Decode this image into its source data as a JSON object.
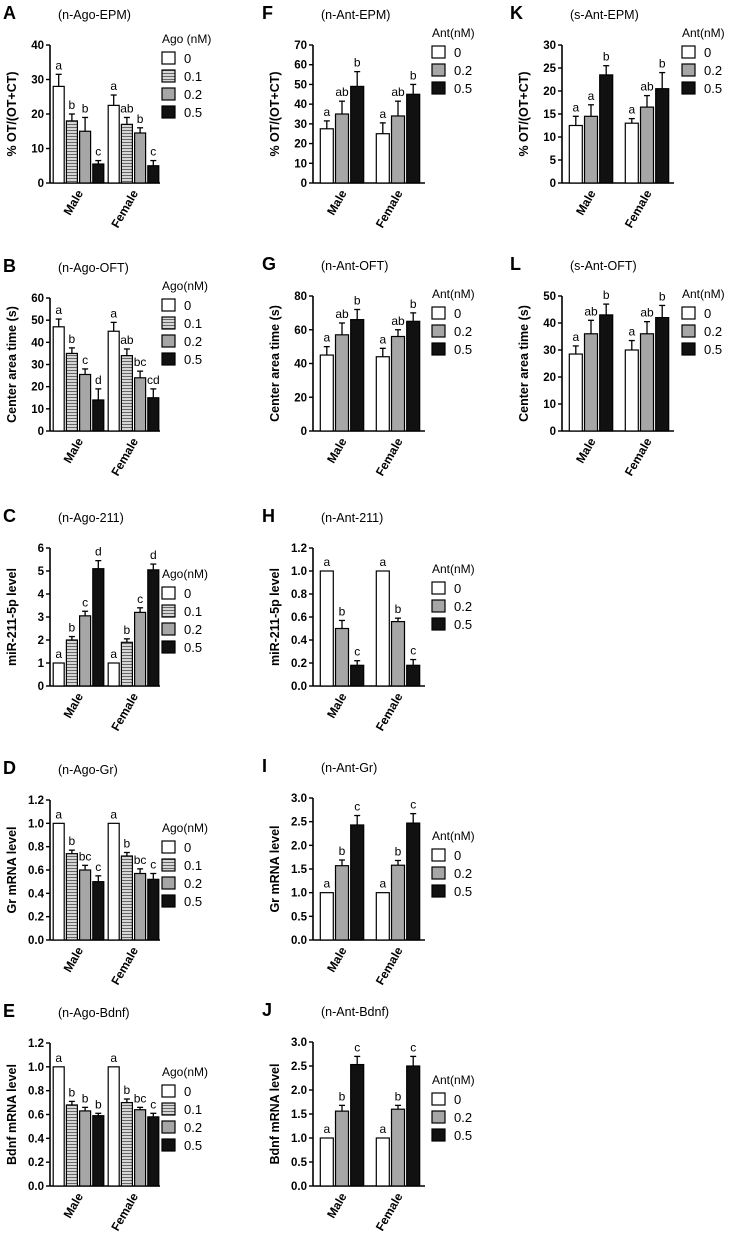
{
  "colors": {
    "axis": "#000000",
    "bar0": "#ffffff",
    "bar_white": "#ffffff",
    "bar_hatch": "#d6d6d6",
    "bar_gray": "#a6a6a6",
    "bar_black": "#111111"
  },
  "chart_data": [
    {
      "id": "A",
      "letter": "A",
      "type": "bar",
      "title": "(n-Ago-EPM)",
      "ylabel": "% OT/(OT+CT)",
      "ylim": [
        0,
        40
      ],
      "yticks": [
        "0",
        "10",
        "20",
        "30",
        "40"
      ],
      "categories": [
        "Male",
        "Female"
      ],
      "legend_title": "Ago (nM)",
      "series": [
        {
          "name": "0",
          "fill": "white",
          "values": [
            28,
            22.5
          ],
          "errors": [
            3.5,
            3
          ],
          "labels": [
            "a",
            "a"
          ]
        },
        {
          "name": "0.1",
          "fill": "hatch",
          "values": [
            18,
            17
          ],
          "errors": [
            2,
            2
          ],
          "labels": [
            "b",
            "ab"
          ]
        },
        {
          "name": "0.2",
          "fill": "gray",
          "values": [
            15,
            14.5
          ],
          "errors": [
            4,
            1.5
          ],
          "labels": [
            "b",
            "b"
          ]
        },
        {
          "name": "0.5",
          "fill": "black",
          "values": [
            5.5,
            5
          ],
          "errors": [
            1,
            1.5
          ],
          "labels": [
            "c",
            "c"
          ]
        }
      ]
    },
    {
      "id": "B",
      "letter": "B",
      "type": "bar",
      "title": "(n-Ago-OFT)",
      "ylabel": "Center area time (s)",
      "ylim": [
        0,
        60
      ],
      "yticks": [
        "0",
        "10",
        "20",
        "30",
        "40",
        "50",
        "60"
      ],
      "categories": [
        "Male",
        "Female"
      ],
      "legend_title": "Ago(nM)",
      "series": [
        {
          "name": "0",
          "fill": "white",
          "values": [
            47,
            45
          ],
          "errors": [
            3.5,
            4
          ],
          "labels": [
            "a",
            "a"
          ]
        },
        {
          "name": "0.1",
          "fill": "hatch",
          "values": [
            35,
            34
          ],
          "errors": [
            2.5,
            3
          ],
          "labels": [
            "b",
            "ab"
          ]
        },
        {
          "name": "0.2",
          "fill": "gray",
          "values": [
            25.5,
            24
          ],
          "errors": [
            2.5,
            3
          ],
          "labels": [
            "c",
            "bc"
          ]
        },
        {
          "name": "0.5",
          "fill": "black",
          "values": [
            14,
            15
          ],
          "errors": [
            5,
            4
          ],
          "labels": [
            "d",
            "cd"
          ]
        }
      ]
    },
    {
      "id": "C",
      "letter": "C",
      "type": "bar",
      "title": "(n-Ago-211)",
      "ylabel": "miR-211-5p level",
      "ylim": [
        0,
        6
      ],
      "yticks": [
        "0",
        "1",
        "2",
        "3",
        "4",
        "5",
        "6"
      ],
      "categories": [
        "Male",
        "Female"
      ],
      "legend_title": "Ago(nM)",
      "series": [
        {
          "name": "0",
          "fill": "white",
          "values": [
            1,
            1
          ],
          "errors": [
            0,
            0
          ],
          "labels": [
            "a",
            "a"
          ]
        },
        {
          "name": "0.1",
          "fill": "hatch",
          "values": [
            2,
            1.9
          ],
          "errors": [
            0.15,
            0.15
          ],
          "labels": [
            "b",
            "b"
          ]
        },
        {
          "name": "0.2",
          "fill": "gray",
          "values": [
            3.05,
            3.2
          ],
          "errors": [
            0.2,
            0.2
          ],
          "labels": [
            "c",
            "c"
          ]
        },
        {
          "name": "0.5",
          "fill": "black",
          "values": [
            5.1,
            5.05
          ],
          "errors": [
            0.35,
            0.25
          ],
          "labels": [
            "d",
            "d"
          ]
        }
      ]
    },
    {
      "id": "D",
      "letter": "D",
      "type": "bar",
      "title": "(n-Ago-Gr)",
      "ylabel": "Gr mRNA level",
      "ylim": [
        0,
        1.2
      ],
      "yticks": [
        "0.0",
        "0.2",
        "0.4",
        "0.6",
        "0.8",
        "1.0",
        "1.2"
      ],
      "categories": [
        "Male",
        "Female"
      ],
      "legend_title": "Ago(nM)",
      "series": [
        {
          "name": "0",
          "fill": "white",
          "values": [
            1.0,
            1.0
          ],
          "errors": [
            0,
            0
          ],
          "labels": [
            "a",
            "a"
          ]
        },
        {
          "name": "0.1",
          "fill": "hatch",
          "values": [
            0.74,
            0.72
          ],
          "errors": [
            0.03,
            0.03
          ],
          "labels": [
            "b",
            "b"
          ]
        },
        {
          "name": "0.2",
          "fill": "gray",
          "values": [
            0.6,
            0.57
          ],
          "errors": [
            0.04,
            0.04
          ],
          "labels": [
            "bc",
            "bc"
          ]
        },
        {
          "name": "0.5",
          "fill": "black",
          "values": [
            0.5,
            0.52
          ],
          "errors": [
            0.05,
            0.05
          ],
          "labels": [
            "c",
            "c"
          ]
        }
      ]
    },
    {
      "id": "E",
      "letter": "E",
      "type": "bar",
      "title": "(n-Ago-Bdnf)",
      "ylabel": "Bdnf mRNA level",
      "ylim": [
        0,
        1.2
      ],
      "yticks": [
        "0.0",
        "0.2",
        "0.4",
        "0.6",
        "0.8",
        "1.0",
        "1.2"
      ],
      "categories": [
        "Male",
        "Female"
      ],
      "legend_title": "Ago(nM)",
      "series": [
        {
          "name": "0",
          "fill": "white",
          "values": [
            1.0,
            1.0
          ],
          "errors": [
            0,
            0
          ],
          "labels": [
            "a",
            "a"
          ]
        },
        {
          "name": "0.1",
          "fill": "hatch",
          "values": [
            0.68,
            0.7
          ],
          "errors": [
            0.03,
            0.03
          ],
          "labels": [
            "b",
            "b"
          ]
        },
        {
          "name": "0.2",
          "fill": "gray",
          "values": [
            0.63,
            0.64
          ],
          "errors": [
            0.03,
            0.02
          ],
          "labels": [
            "b",
            "bc"
          ]
        },
        {
          "name": "0.5",
          "fill": "black",
          "values": [
            0.59,
            0.58
          ],
          "errors": [
            0.02,
            0.03
          ],
          "labels": [
            "b",
            "c"
          ]
        }
      ]
    },
    {
      "id": "F",
      "letter": "F",
      "type": "bar",
      "title": "(n-Ant-EPM)",
      "ylabel": "% OT/(OT+CT)",
      "ylim": [
        0,
        70
      ],
      "yticks": [
        "0",
        "10",
        "20",
        "30",
        "40",
        "50",
        "60",
        "70"
      ],
      "categories": [
        "Male",
        "Female"
      ],
      "legend_title": "Ant(nM)",
      "series": [
        {
          "name": "0",
          "fill": "white",
          "values": [
            27.5,
            25
          ],
          "errors": [
            4,
            5.5
          ],
          "labels": [
            "a",
            "a"
          ]
        },
        {
          "name": "0.2",
          "fill": "gray",
          "values": [
            35,
            34
          ],
          "errors": [
            6.5,
            7.5
          ],
          "labels": [
            "ab",
            "ab"
          ]
        },
        {
          "name": "0.5",
          "fill": "black",
          "values": [
            49,
            45
          ],
          "errors": [
            7.5,
            5
          ],
          "labels": [
            "b",
            "b"
          ]
        }
      ]
    },
    {
      "id": "G",
      "letter": "G",
      "type": "bar",
      "title": "(n-Ant-OFT)",
      "ylabel": "Center area time (s)",
      "ylim": [
        0,
        80
      ],
      "yticks": [
        "0",
        "20",
        "40",
        "60",
        "80"
      ],
      "categories": [
        "Male",
        "Female"
      ],
      "legend_title": "Ant(nM)",
      "series": [
        {
          "name": "0",
          "fill": "white",
          "values": [
            45,
            44
          ],
          "errors": [
            5,
            5
          ],
          "labels": [
            "a",
            "a"
          ]
        },
        {
          "name": "0.2",
          "fill": "gray",
          "values": [
            57,
            56
          ],
          "errors": [
            7,
            4
          ],
          "labels": [
            "ab",
            "ab"
          ]
        },
        {
          "name": "0.5",
          "fill": "black",
          "values": [
            66,
            65
          ],
          "errors": [
            6,
            5
          ],
          "labels": [
            "b",
            "b"
          ]
        }
      ]
    },
    {
      "id": "H",
      "letter": "H",
      "type": "bar",
      "title": "(n-Ant-211)",
      "ylabel": "miR-211-5p level",
      "ylim": [
        0,
        1.2
      ],
      "yticks": [
        "0.0",
        "0.2",
        "0.4",
        "0.6",
        "0.8",
        "1.0",
        "1.2"
      ],
      "categories": [
        "Male",
        "Female"
      ],
      "legend_title": "Ant(nM)",
      "series": [
        {
          "name": "0",
          "fill": "white",
          "values": [
            1.0,
            1.0
          ],
          "errors": [
            0,
            0
          ],
          "labels": [
            "a",
            "a"
          ]
        },
        {
          "name": "0.2",
          "fill": "gray",
          "values": [
            0.5,
            0.56
          ],
          "errors": [
            0.07,
            0.03
          ],
          "labels": [
            "b",
            "b"
          ]
        },
        {
          "name": "0.5",
          "fill": "black",
          "values": [
            0.18,
            0.18
          ],
          "errors": [
            0.04,
            0.05
          ],
          "labels": [
            "c",
            "c"
          ]
        }
      ]
    },
    {
      "id": "I",
      "letter": "I",
      "type": "bar",
      "title": "(n-Ant-Gr)",
      "ylabel": "Gr mRNA level",
      "ylim": [
        0,
        3.0
      ],
      "yticks": [
        "0.0",
        "0.5",
        "1.0",
        "1.5",
        "2.0",
        "2.5",
        "3.0"
      ],
      "categories": [
        "Male",
        "Female"
      ],
      "legend_title": "Ant(nM)",
      "series": [
        {
          "name": "0",
          "fill": "white",
          "values": [
            1.0,
            1.0
          ],
          "errors": [
            0,
            0
          ],
          "labels": [
            "a",
            "a"
          ]
        },
        {
          "name": "0.2",
          "fill": "gray",
          "values": [
            1.57,
            1.58
          ],
          "errors": [
            0.12,
            0.1
          ],
          "labels": [
            "b",
            "b"
          ]
        },
        {
          "name": "0.5",
          "fill": "black",
          "values": [
            2.43,
            2.47
          ],
          "errors": [
            0.2,
            0.2
          ],
          "labels": [
            "c",
            "c"
          ]
        }
      ]
    },
    {
      "id": "J",
      "letter": "J",
      "type": "bar",
      "title": "(n-Ant-Bdnf)",
      "ylabel": "Bdnf mRNA level",
      "ylim": [
        0,
        3.0
      ],
      "yticks": [
        "0.0",
        "0.5",
        "1.0",
        "1.5",
        "2.0",
        "2.5",
        "3.0"
      ],
      "categories": [
        "Male",
        "Female"
      ],
      "legend_title": "Ant(nM)",
      "series": [
        {
          "name": "0",
          "fill": "white",
          "values": [
            1.0,
            1.0
          ],
          "errors": [
            0,
            0
          ],
          "labels": [
            "a",
            "a"
          ]
        },
        {
          "name": "0.2",
          "fill": "gray",
          "values": [
            1.56,
            1.6
          ],
          "errors": [
            0.12,
            0.08
          ],
          "labels": [
            "b",
            "b"
          ]
        },
        {
          "name": "0.5",
          "fill": "black",
          "values": [
            2.53,
            2.5
          ],
          "errors": [
            0.17,
            0.2
          ],
          "labels": [
            "c",
            "c"
          ]
        }
      ]
    },
    {
      "id": "K",
      "letter": "K",
      "type": "bar",
      "title": "(s-Ant-EPM)",
      "ylabel": "% OT/(OT+CT)",
      "ylim": [
        0,
        30
      ],
      "yticks": [
        "0",
        "5",
        "10",
        "15",
        "20",
        "25",
        "30"
      ],
      "categories": [
        "Male",
        "Female"
      ],
      "legend_title": "Ant(nM)",
      "series": [
        {
          "name": "0",
          "fill": "white",
          "values": [
            12.5,
            13
          ],
          "errors": [
            2,
            1
          ],
          "labels": [
            "a",
            "a"
          ]
        },
        {
          "name": "0.2",
          "fill": "gray",
          "values": [
            14.5,
            16.5
          ],
          "errors": [
            2.5,
            2.5
          ],
          "labels": [
            "a",
            "ab"
          ]
        },
        {
          "name": "0.5",
          "fill": "black",
          "values": [
            23.5,
            20.5
          ],
          "errors": [
            2,
            3.5
          ],
          "labels": [
            "b",
            "b"
          ]
        }
      ]
    },
    {
      "id": "L",
      "letter": "L",
      "type": "bar",
      "title": "(s-Ant-OFT)",
      "ylabel": "Center area time (s)",
      "ylim": [
        0,
        50
      ],
      "yticks": [
        "0",
        "10",
        "20",
        "30",
        "40",
        "50"
      ],
      "categories": [
        "Male",
        "Female"
      ],
      "legend_title": "Ant(nM)",
      "series": [
        {
          "name": "0",
          "fill": "white",
          "values": [
            28.5,
            30
          ],
          "errors": [
            3,
            3.5
          ],
          "labels": [
            "a",
            "a"
          ]
        },
        {
          "name": "0.2",
          "fill": "gray",
          "values": [
            36,
            36
          ],
          "errors": [
            5,
            4.5
          ],
          "labels": [
            "ab",
            "ab"
          ]
        },
        {
          "name": "0.5",
          "fill": "black",
          "values": [
            43,
            42
          ],
          "errors": [
            4,
            4.5
          ],
          "labels": [
            "b",
            "b"
          ]
        }
      ]
    }
  ]
}
